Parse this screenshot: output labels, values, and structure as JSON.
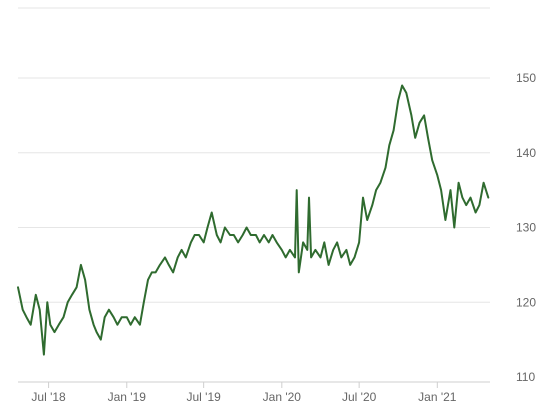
{
  "chart_data": {
    "type": "line",
    "title": "",
    "xlabel": "",
    "ylabel": "",
    "ylim": [
      110,
      150
    ],
    "yticks": [
      110,
      120,
      130,
      140,
      150
    ],
    "ytick_labels": [
      "110",
      "120",
      "130",
      "140",
      "150"
    ],
    "xlim": [
      "2018-04-20",
      "2021-05-05"
    ],
    "xticks": [
      "2018-07-01",
      "2019-01-01",
      "2019-07-01",
      "2020-01-01",
      "2020-07-01",
      "2021-01-01"
    ],
    "xtick_labels": [
      "Jul '18",
      "Jan '19",
      "Jul '19",
      "Jan '20",
      "Jul '20",
      "Jan '21"
    ],
    "grid": true,
    "legend": "none",
    "colors": {
      "line": "#2f6b2f",
      "grid": "#e6e6e6",
      "axis": "#cfcfcf",
      "tick_text": "#666666"
    },
    "series": [
      {
        "x": [
          "2018-04-20",
          "2018-05-01",
          "2018-05-10",
          "2018-05-20",
          "2018-06-01",
          "2018-06-10",
          "2018-06-20",
          "2018-06-28",
          "2018-07-05",
          "2018-07-15",
          "2018-07-25",
          "2018-08-05",
          "2018-08-15",
          "2018-08-25",
          "2018-09-05",
          "2018-09-15",
          "2018-09-25",
          "2018-10-05",
          "2018-10-15",
          "2018-10-22",
          "2018-11-01",
          "2018-11-10",
          "2018-11-20",
          "2018-12-01",
          "2018-12-10",
          "2018-12-20",
          "2019-01-01",
          "2019-01-10",
          "2019-01-20",
          "2019-02-01",
          "2019-02-10",
          "2019-02-20",
          "2019-03-01",
          "2019-03-10",
          "2019-03-20",
          "2019-04-01",
          "2019-04-10",
          "2019-04-20",
          "2019-05-01",
          "2019-05-10",
          "2019-05-20",
          "2019-06-01",
          "2019-06-10",
          "2019-06-20",
          "2019-07-01",
          "2019-07-10",
          "2019-07-20",
          "2019-08-01",
          "2019-08-10",
          "2019-08-20",
          "2019-09-01",
          "2019-09-10",
          "2019-09-20",
          "2019-10-01",
          "2019-10-10",
          "2019-10-20",
          "2019-11-01",
          "2019-11-10",
          "2019-11-20",
          "2019-12-01",
          "2019-12-10",
          "2019-12-20",
          "2020-01-01",
          "2020-01-10",
          "2020-01-20",
          "2020-02-01",
          "2020-02-05",
          "2020-02-10",
          "2020-02-20",
          "2020-03-01",
          "2020-03-05",
          "2020-03-10",
          "2020-03-20",
          "2020-04-01",
          "2020-04-10",
          "2020-04-20",
          "2020-05-01",
          "2020-05-10",
          "2020-05-20",
          "2020-06-01",
          "2020-06-10",
          "2020-06-20",
          "2020-07-01",
          "2020-07-10",
          "2020-07-20",
          "2020-08-01",
          "2020-08-10",
          "2020-08-20",
          "2020-09-01",
          "2020-09-10",
          "2020-09-20",
          "2020-10-01",
          "2020-10-10",
          "2020-10-20",
          "2020-11-01",
          "2020-11-10",
          "2020-11-20",
          "2020-12-01",
          "2020-12-10",
          "2020-12-20",
          "2021-01-01",
          "2021-01-10",
          "2021-01-20",
          "2021-02-01",
          "2021-02-10",
          "2021-02-20",
          "2021-03-01",
          "2021-03-10",
          "2021-03-20",
          "2021-04-01",
          "2021-04-10",
          "2021-04-20",
          "2021-05-01"
        ],
        "values": [
          122,
          119,
          118,
          117,
          121,
          119,
          113,
          120,
          117,
          116,
          117,
          118,
          120,
          121,
          122,
          125,
          123,
          119,
          117,
          116,
          115,
          118,
          119,
          118,
          117,
          118,
          118,
          117,
          118,
          117,
          120,
          123,
          124,
          124,
          125,
          126,
          125,
          124,
          126,
          127,
          126,
          128,
          129,
          129,
          128,
          130,
          132,
          129,
          128,
          130,
          129,
          129,
          128,
          129,
          130,
          129,
          129,
          128,
          129,
          128,
          129,
          128,
          127,
          126,
          127,
          126,
          135,
          124,
          128,
          127,
          134,
          126,
          127,
          126,
          128,
          125,
          127,
          128,
          126,
          127,
          125,
          126,
          128,
          134,
          131,
          133,
          135,
          136,
          138,
          141,
          143,
          147,
          149,
          148,
          145,
          142,
          144,
          145,
          142,
          139,
          137,
          135,
          131,
          135,
          130,
          136,
          134,
          133,
          134,
          132,
          133,
          136,
          134
        ]
      }
    ]
  }
}
